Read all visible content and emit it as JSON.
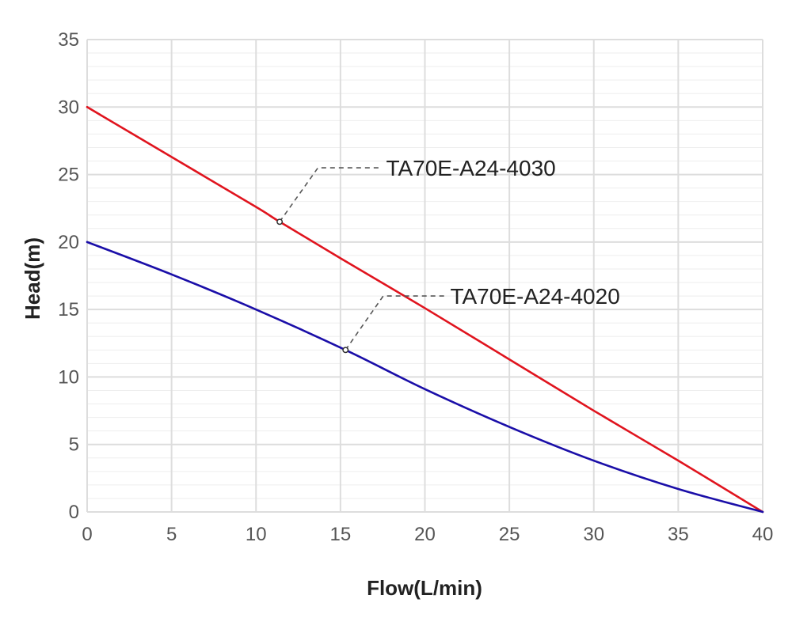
{
  "chart_data": {
    "type": "line",
    "title": "",
    "xlabel": "Flow(L/min)",
    "ylabel": "Head(m)",
    "xlim": [
      0,
      40
    ],
    "ylim": [
      0,
      35
    ],
    "xticks": [
      0,
      5,
      10,
      15,
      20,
      25,
      30,
      35,
      40
    ],
    "yticks": [
      0,
      5,
      10,
      15,
      20,
      25,
      30,
      35
    ],
    "grid": true,
    "series": [
      {
        "name": "TA70E-A24-4030",
        "color": "#e0141e",
        "x": [
          0,
          5,
          10,
          11.4,
          15,
          20,
          25,
          30,
          35,
          40
        ],
        "y": [
          30,
          26.3,
          22.6,
          21.5,
          18.8,
          15.1,
          11.3,
          7.5,
          3.8,
          0
        ]
      },
      {
        "name": "TA70E-A24-4020",
        "color": "#1a0ea8",
        "x": [
          0,
          5,
          10,
          15.3,
          20,
          25,
          30,
          35,
          40
        ],
        "y": [
          20,
          17.6,
          15.0,
          12.0,
          9.1,
          6.3,
          3.8,
          1.7,
          0
        ]
      }
    ],
    "annotations": [
      {
        "text": "TA70E-A24-4030",
        "series": 0,
        "point": [
          11.4,
          21.5
        ],
        "label_at": [
          17.7,
          25.5
        ]
      },
      {
        "text": "TA70E-A24-4020",
        "series": 1,
        "point": [
          15.3,
          12.0
        ],
        "label_at": [
          21.5,
          16.0
        ]
      }
    ]
  }
}
